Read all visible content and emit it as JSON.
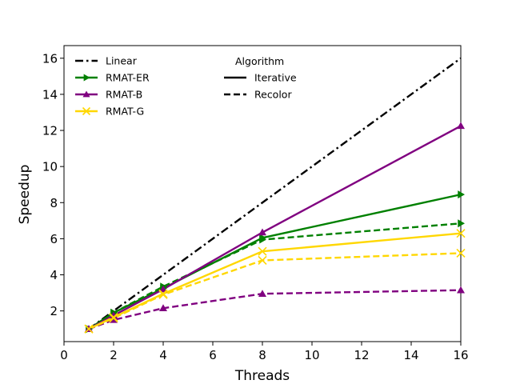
{
  "chart_data": {
    "type": "line",
    "title": "",
    "xlabel": "Threads",
    "ylabel": "Speedup",
    "xlim": [
      0,
      16
    ],
    "ylim": [
      0.3,
      16.7
    ],
    "xticks": [
      0,
      2,
      4,
      6,
      8,
      10,
      12,
      14,
      16
    ],
    "yticks": [
      2,
      4,
      6,
      8,
      10,
      12,
      14,
      16
    ],
    "grid": false,
    "legend_placement": "top-left",
    "x": [
      1,
      2,
      4,
      8,
      16
    ],
    "series": [
      {
        "name": "Linear",
        "color": "#000000",
        "dash": "dashdot",
        "marker": "none",
        "values": [
          1,
          2,
          4,
          8,
          16
        ]
      },
      {
        "name": "RMAT-ER",
        "algorithm": "Iterative",
        "color": "#008000",
        "dash": "solid",
        "marker": "triangle-right",
        "values": [
          1.0,
          1.9,
          3.25,
          6.05,
          8.45
        ]
      },
      {
        "name": "RMAT-ER",
        "algorithm": "Recolor",
        "color": "#008000",
        "dash": "dashed",
        "marker": "triangle-right",
        "values": [
          1.0,
          1.9,
          3.35,
          5.95,
          6.85
        ]
      },
      {
        "name": "RMAT-B",
        "algorithm": "Iterative",
        "color": "#800080",
        "dash": "solid",
        "marker": "triangle-up",
        "values": [
          1.0,
          1.75,
          3.2,
          6.35,
          12.25
        ]
      },
      {
        "name": "RMAT-B",
        "algorithm": "Recolor",
        "color": "#800080",
        "dash": "dashed",
        "marker": "triangle-up",
        "values": [
          1.0,
          1.5,
          2.15,
          2.95,
          3.15
        ]
      },
      {
        "name": "RMAT-G",
        "algorithm": "Iterative",
        "color": "#FFD700",
        "dash": "solid",
        "marker": "x",
        "values": [
          1.0,
          1.65,
          2.95,
          5.3,
          6.3
        ]
      },
      {
        "name": "RMAT-G",
        "algorithm": "Recolor",
        "color": "#FFD700",
        "dash": "dashed",
        "marker": "x",
        "values": [
          1.0,
          1.6,
          2.9,
          4.8,
          5.2
        ]
      }
    ],
    "legend": {
      "entries": [
        {
          "label": "Linear",
          "color": "#000000",
          "dash": "dashdot",
          "marker": "none"
        },
        {
          "label": "RMAT-ER",
          "color": "#008000",
          "dash": "solid",
          "marker": "triangle-right"
        },
        {
          "label": "RMAT-B",
          "color": "#800080",
          "dash": "solid",
          "marker": "triangle-up"
        },
        {
          "label": "RMAT-G",
          "color": "#FFD700",
          "dash": "solid",
          "marker": "x"
        }
      ],
      "algorithm_title": "Algorithm",
      "algorithm_entries": [
        {
          "label": "Iterative",
          "dash": "solid"
        },
        {
          "label": "Recolor",
          "dash": "dashed"
        }
      ]
    }
  }
}
